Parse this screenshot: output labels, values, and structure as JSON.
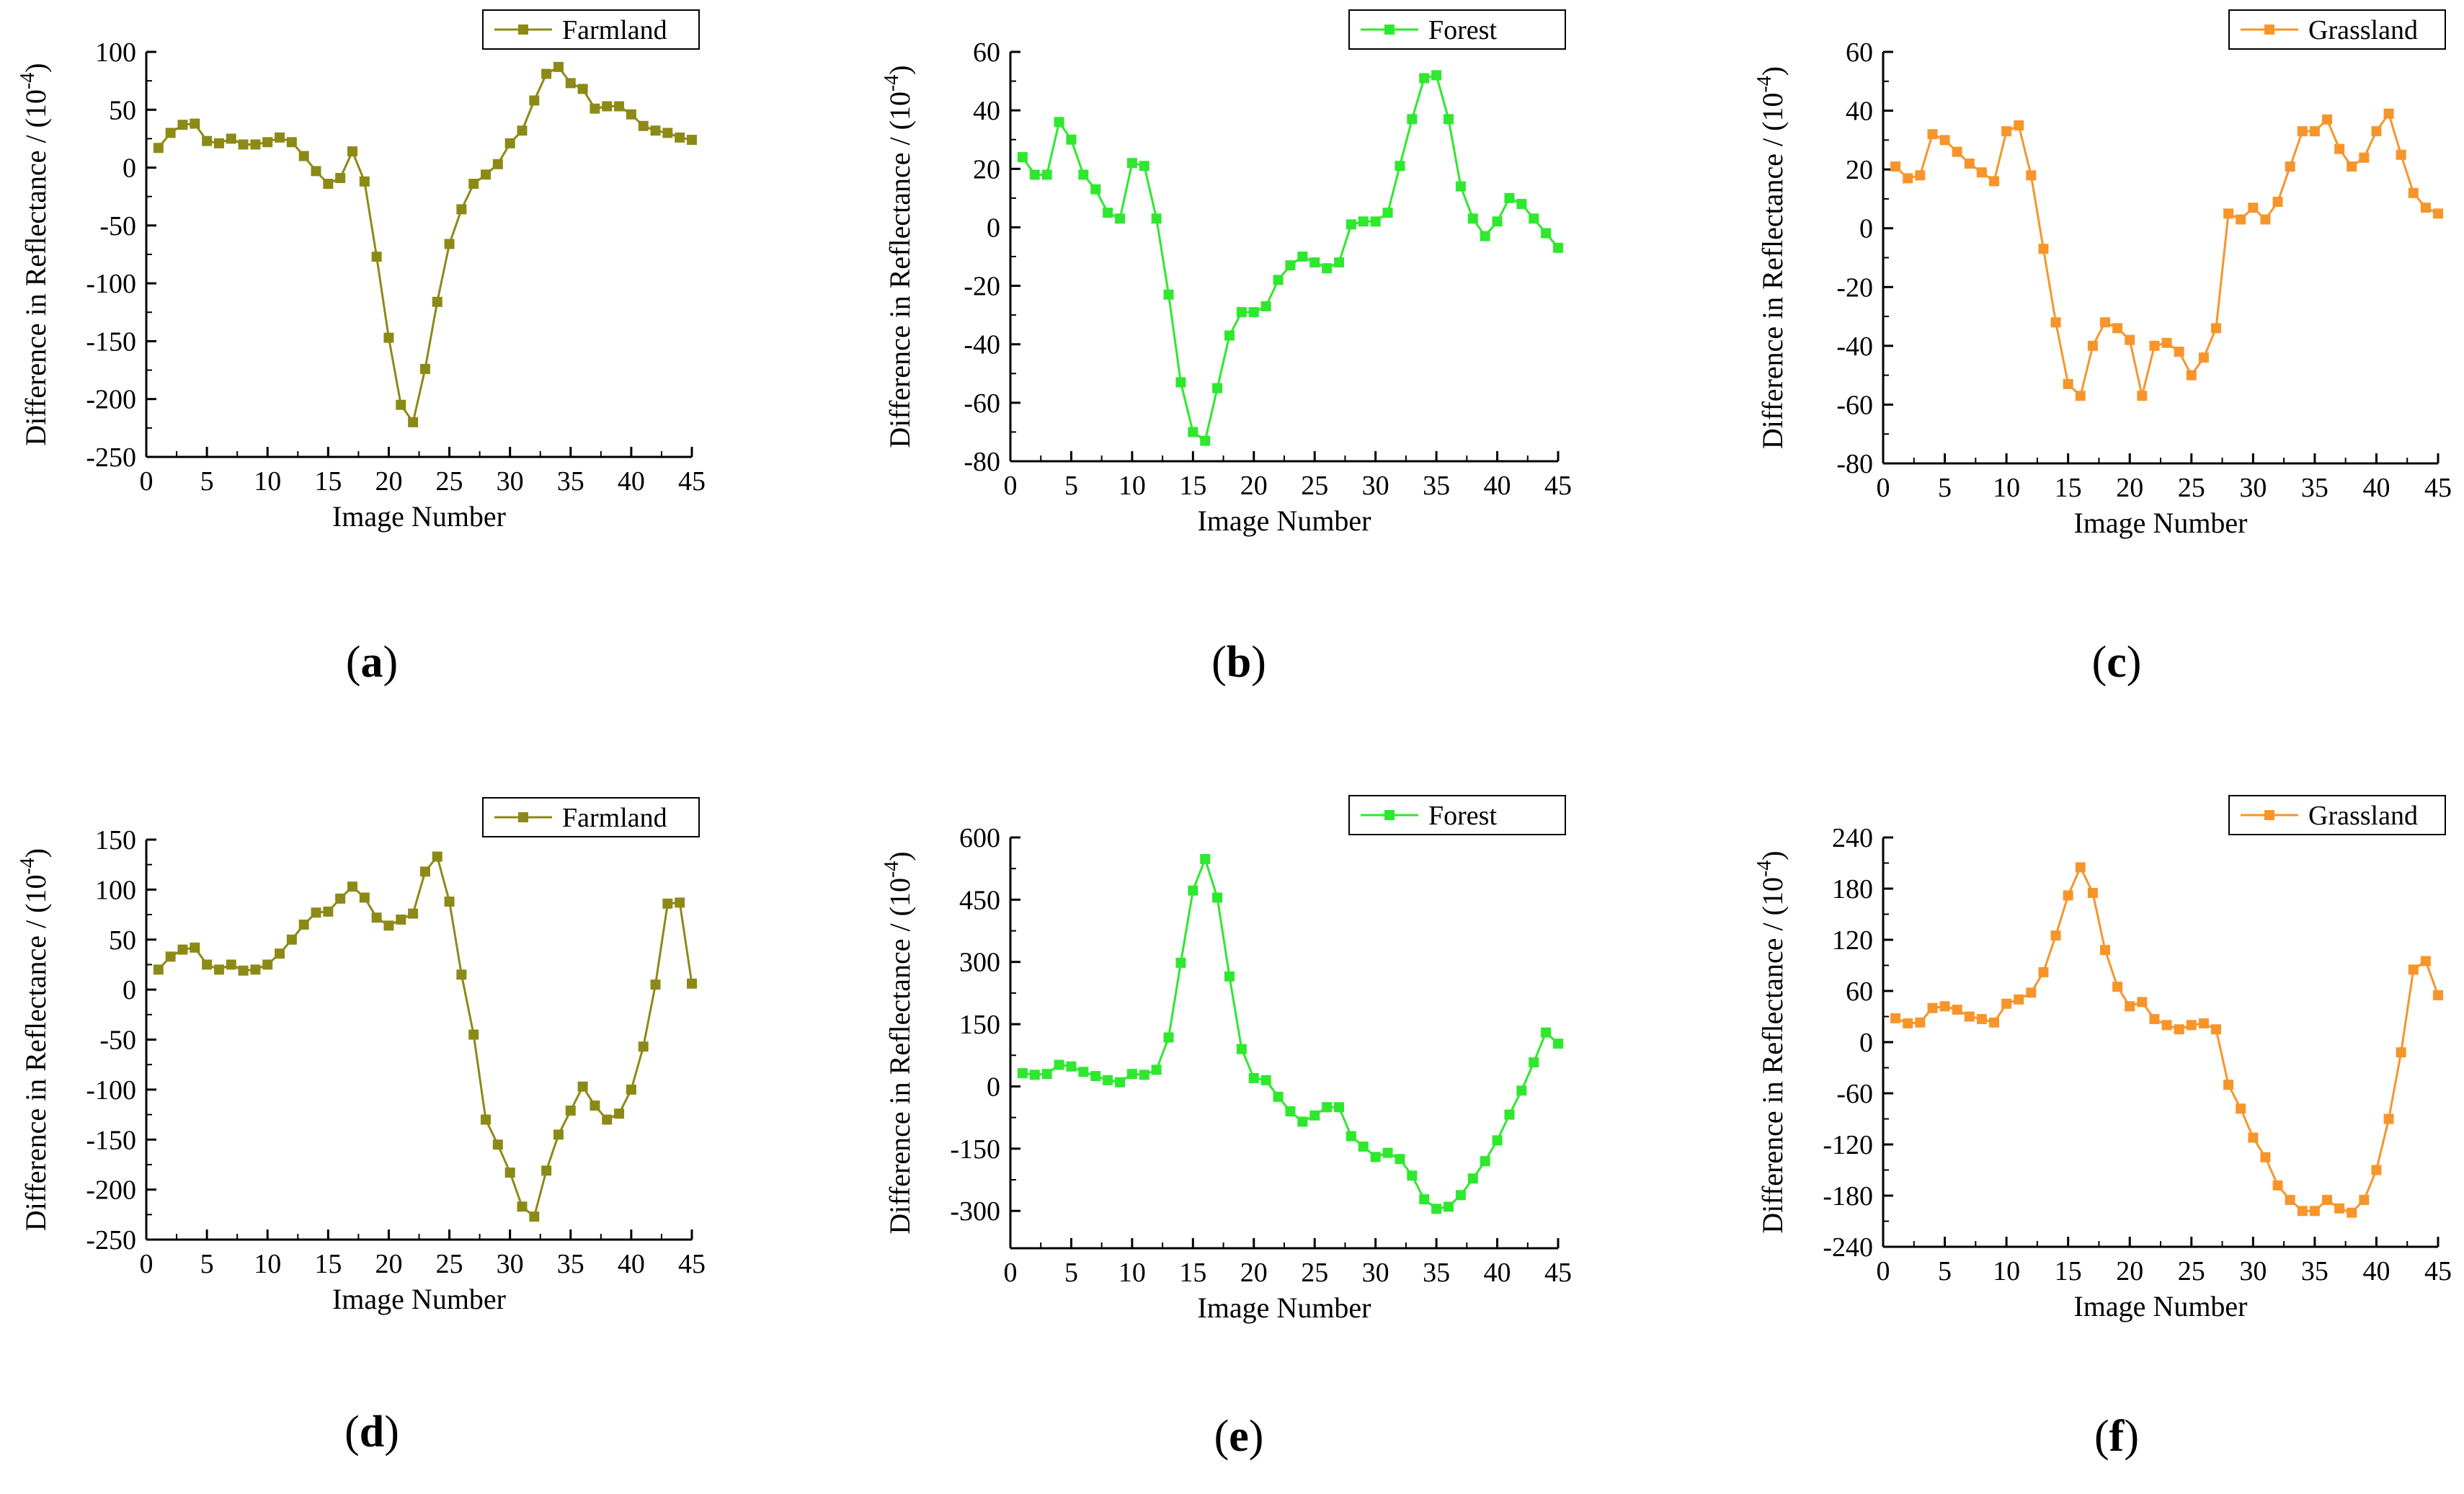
{
  "figure": {
    "layout": "2 rows x 3 columns of line charts"
  },
  "panels": [
    {
      "label": "a",
      "paren_open": "(",
      "paren_close": ")"
    },
    {
      "label": "b",
      "paren_open": "(",
      "paren_close": ")"
    },
    {
      "label": "c",
      "paren_open": "(",
      "paren_close": ")"
    },
    {
      "label": "d",
      "paren_open": "(",
      "paren_close": ")"
    },
    {
      "label": "e",
      "paren_open": "(",
      "paren_close": ")"
    },
    {
      "label": "f",
      "paren_open": "(",
      "paren_close": ")"
    }
  ],
  "chart_data": [
    {
      "panel": "a",
      "type": "line",
      "xlabel": "Image Number",
      "ylabel": "Difference in Reflectance / (10",
      "ylabel_exponent": "-4",
      "ylabel_suffix": ")",
      "xlim": [
        0,
        45
      ],
      "ylim": [
        -250,
        100
      ],
      "xticks": [
        0,
        5,
        10,
        15,
        20,
        25,
        30,
        35,
        40,
        45
      ],
      "yticks": [
        -250,
        -200,
        -150,
        -100,
        -50,
        0,
        50,
        100
      ],
      "series": [
        {
          "name": "Farmland",
          "color": "#8C8A16",
          "x": [
            1,
            2,
            3,
            4,
            5,
            6,
            7,
            8,
            9,
            10,
            11,
            12,
            13,
            14,
            15,
            16,
            17,
            18,
            19,
            20,
            21,
            22,
            23,
            24,
            25,
            26,
            27,
            28,
            29,
            30,
            31,
            32,
            33,
            34,
            35,
            36,
            37,
            38,
            39,
            40,
            41,
            42,
            43,
            44,
            45
          ],
          "y": [
            17,
            30,
            37,
            38,
            23,
            21,
            25,
            20,
            20,
            22,
            26,
            22,
            10,
            -3,
            -14,
            -9,
            14,
            -12,
            -77,
            -147,
            -205,
            -220,
            -174,
            -116,
            -66,
            -36,
            -14,
            -6,
            3,
            21,
            32,
            58,
            81,
            87,
            73,
            68,
            51,
            53,
            53,
            46,
            36,
            32,
            30,
            26,
            24
          ]
        }
      ]
    },
    {
      "panel": "b",
      "type": "line",
      "xlabel": "Image Number",
      "ylabel": "Difference in Reflectance / (10",
      "ylabel_exponent": "-4",
      "ylabel_suffix": ")",
      "xlim": [
        0,
        45
      ],
      "ylim": [
        -80,
        60
      ],
      "xticks": [
        0,
        5,
        10,
        15,
        20,
        25,
        30,
        35,
        40,
        45
      ],
      "yticks": [
        -80,
        -60,
        -40,
        -20,
        0,
        20,
        40,
        60
      ],
      "series": [
        {
          "name": "Forest",
          "color": "#2EE82E",
          "x": [
            1,
            2,
            3,
            4,
            5,
            6,
            7,
            8,
            9,
            10,
            11,
            12,
            13,
            14,
            15,
            16,
            17,
            18,
            19,
            20,
            21,
            22,
            23,
            24,
            25,
            26,
            27,
            28,
            29,
            30,
            31,
            32,
            33,
            34,
            35,
            36,
            37,
            38,
            39,
            40,
            41,
            42,
            43,
            44,
            45
          ],
          "y": [
            24,
            18,
            18,
            36,
            30,
            18,
            13,
            5,
            3,
            22,
            21,
            3,
            -23,
            -53,
            -70,
            -73,
            -55,
            -37,
            -29,
            -29,
            -27,
            -18,
            -13,
            -10,
            -12,
            -14,
            -12,
            1,
            2,
            2,
            5,
            21,
            37,
            51,
            52,
            37,
            14,
            3,
            -3,
            2,
            10,
            8,
            3,
            -2,
            -7
          ]
        }
      ]
    },
    {
      "panel": "c",
      "type": "line",
      "xlabel": "Image Number",
      "ylabel": "Difference in Reflectance / (10",
      "ylabel_exponent": "-4",
      "ylabel_suffix": ")",
      "xlim": [
        0,
        45
      ],
      "ylim": [
        -80,
        60
      ],
      "xticks": [
        0,
        5,
        10,
        15,
        20,
        25,
        30,
        35,
        40,
        45
      ],
      "yticks": [
        -80,
        -60,
        -40,
        -20,
        0,
        20,
        40,
        60
      ],
      "series": [
        {
          "name": "Grassland",
          "color": "#F7952B",
          "x": [
            1,
            2,
            3,
            4,
            5,
            6,
            7,
            8,
            9,
            10,
            11,
            12,
            13,
            14,
            15,
            16,
            17,
            18,
            19,
            20,
            21,
            22,
            23,
            24,
            25,
            26,
            27,
            28,
            29,
            30,
            31,
            32,
            33,
            34,
            35,
            36,
            37,
            38,
            39,
            40,
            41,
            42,
            43,
            44,
            45
          ],
          "y": [
            21,
            17,
            18,
            32,
            30,
            26,
            22,
            19,
            16,
            33,
            35,
            18,
            -7,
            -32,
            -53,
            -57,
            -40,
            -32,
            -34,
            -38,
            -57,
            -40,
            -39,
            -42,
            -50,
            -44,
            -34,
            5,
            3,
            7,
            3,
            9,
            21,
            33,
            33,
            37,
            27,
            21,
            24,
            33,
            39,
            25,
            12,
            7,
            5
          ]
        }
      ]
    },
    {
      "panel": "d",
      "type": "line",
      "xlabel": "Image Number",
      "ylabel": "Difference in Reflectance / (10",
      "ylabel_exponent": "-4",
      "ylabel_suffix": ")",
      "xlim": [
        0,
        45
      ],
      "ylim": [
        -250,
        150
      ],
      "xticks": [
        0,
        5,
        10,
        15,
        20,
        25,
        30,
        35,
        40,
        45
      ],
      "yticks": [
        -250,
        -200,
        -150,
        -100,
        -50,
        0,
        50,
        100,
        150
      ],
      "series": [
        {
          "name": "Farmland",
          "color": "#8C8A16",
          "x": [
            1,
            2,
            3,
            4,
            5,
            6,
            7,
            8,
            9,
            10,
            11,
            12,
            13,
            14,
            15,
            16,
            17,
            18,
            19,
            20,
            21,
            22,
            23,
            24,
            25,
            26,
            27,
            28,
            29,
            30,
            31,
            32,
            33,
            34,
            35,
            36,
            37,
            38,
            39,
            40,
            41,
            42,
            43,
            44,
            45
          ],
          "y": [
            20,
            33,
            40,
            42,
            25,
            20,
            25,
            19,
            20,
            25,
            36,
            50,
            65,
            77,
            78,
            91,
            103,
            92,
            72,
            64,
            70,
            76,
            118,
            133,
            88,
            15,
            -45,
            -130,
            -155,
            -183,
            -217,
            -227,
            -181,
            -145,
            -121,
            -97,
            -116,
            -130,
            -124,
            -100,
            -57,
            5,
            86,
            87,
            6
          ]
        }
      ]
    },
    {
      "panel": "e",
      "type": "line",
      "xlabel": "Image Number",
      "ylabel": "Difference in Reflectance / (10",
      "ylabel_exponent": "-4",
      "ylabel_suffix": ")",
      "xlim": [
        0,
        45
      ],
      "ylim": [
        -390,
        600
      ],
      "xticks": [
        0,
        5,
        10,
        15,
        20,
        25,
        30,
        35,
        40,
        45
      ],
      "yticks": [
        -300,
        -150,
        0,
        150,
        300,
        450,
        600
      ],
      "series": [
        {
          "name": "Forest",
          "color": "#2EE82E",
          "x": [
            1,
            2,
            3,
            4,
            5,
            6,
            7,
            8,
            9,
            10,
            11,
            12,
            13,
            14,
            15,
            16,
            17,
            18,
            19,
            20,
            21,
            22,
            23,
            24,
            25,
            26,
            27,
            28,
            29,
            30,
            31,
            32,
            33,
            34,
            35,
            36,
            37,
            38,
            39,
            40,
            41,
            42,
            43,
            44,
            45
          ],
          "y": [
            32,
            28,
            30,
            52,
            48,
            35,
            25,
            15,
            10,
            30,
            28,
            40,
            118,
            298,
            472,
            548,
            455,
            265,
            90,
            20,
            15,
            -25,
            -60,
            -85,
            -70,
            -50,
            -50,
            -120,
            -145,
            -170,
            -160,
            -175,
            -215,
            -272,
            -295,
            -290,
            -262,
            -222,
            -180,
            -130,
            -68,
            -10,
            58,
            130,
            103
          ]
        }
      ]
    },
    {
      "panel": "f",
      "type": "line",
      "xlabel": "Image Number",
      "ylabel": "Difference in Reflectance / (10",
      "ylabel_exponent": "-4",
      "ylabel_suffix": ")",
      "xlim": [
        0,
        45
      ],
      "ylim": [
        -240,
        240
      ],
      "xticks": [
        0,
        5,
        10,
        15,
        20,
        25,
        30,
        35,
        40,
        45
      ],
      "yticks": [
        -240,
        -180,
        -120,
        -60,
        0,
        60,
        120,
        180,
        240
      ],
      "series": [
        {
          "name": "Grassland",
          "color": "#F7952B",
          "x": [
            1,
            2,
            3,
            4,
            5,
            6,
            7,
            8,
            9,
            10,
            11,
            12,
            13,
            14,
            15,
            16,
            17,
            18,
            19,
            20,
            21,
            22,
            23,
            24,
            25,
            26,
            27,
            28,
            29,
            30,
            31,
            32,
            33,
            34,
            35,
            36,
            37,
            38,
            39,
            40,
            41,
            42,
            43,
            44,
            45
          ],
          "y": [
            28,
            22,
            23,
            40,
            42,
            38,
            30,
            27,
            23,
            45,
            50,
            58,
            82,
            125,
            172,
            205,
            175,
            108,
            65,
            42,
            47,
            27,
            20,
            15,
            20,
            22,
            15,
            -50,
            -78,
            -112,
            -135,
            -168,
            -185,
            -198,
            -198,
            -185,
            -195,
            -200,
            -185,
            -150,
            -90,
            -12,
            85,
            95,
            55
          ]
        }
      ]
    }
  ]
}
